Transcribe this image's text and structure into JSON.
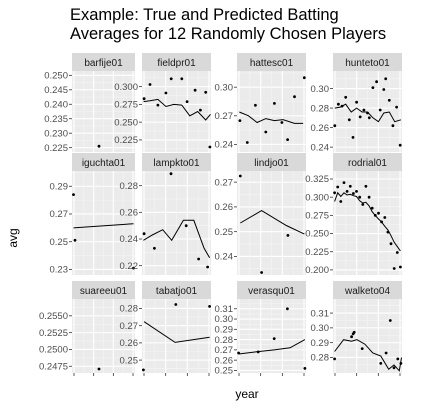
{
  "chart_data": {
    "type": "scatter",
    "title": "Example: True and Predicted Batting\nAverages for 12 Randomly Chosen Players",
    "xlabel": "year",
    "ylabel": "avg",
    "layout": "facet-grid 4 columns x 3 rows, free y scales",
    "grid": true,
    "x_ticks_labeled": false,
    "series_legend": "points = true avg, line = predicted avg",
    "panels": [
      {
        "name": "barfije01",
        "yticks": [
          "0.250",
          "0.245",
          "0.240",
          "0.235",
          "0.230",
          "0.225"
        ],
        "ylim": [
          0.2235,
          0.2515
        ],
        "xlim": [
          0,
          4.2
        ],
        "points": [
          [
            1.8,
            0.2255
          ]
        ],
        "line": []
      },
      {
        "name": "fieldpr01",
        "yticks": [
          "0.300",
          "0.275",
          "0.250",
          "0.225"
        ],
        "ylim": [
          0.208,
          0.322
        ],
        "xlim": [
          0,
          13
        ],
        "points": [
          [
            0.4,
            0.283
          ],
          [
            1.5,
            0.303
          ],
          [
            3.0,
            0.274
          ],
          [
            4.5,
            0.291
          ],
          [
            5.5,
            0.311
          ],
          [
            7.5,
            0.311
          ],
          [
            8.5,
            0.279
          ],
          [
            10.0,
            0.295
          ],
          [
            11.0,
            0.267
          ],
          [
            12.0,
            0.292
          ],
          [
            12.8,
            0.215
          ]
        ],
        "line": [
          [
            0.3,
            0.279
          ],
          [
            1.5,
            0.28
          ],
          [
            3.0,
            0.282
          ],
          [
            4.5,
            0.272
          ],
          [
            6.0,
            0.275
          ],
          [
            7.5,
            0.274
          ],
          [
            9.0,
            0.259
          ],
          [
            10.5,
            0.265
          ],
          [
            12.0,
            0.253
          ],
          [
            12.9,
            0.261
          ]
        ]
      },
      {
        "name": "hattesc01",
        "yticks": [
          "0.30",
          "0.27",
          "0.24"
        ],
        "ylim": [
          0.232,
          0.317
        ],
        "xlim": [
          0,
          12
        ],
        "points": [
          [
            0.5,
            0.265
          ],
          [
            1.8,
            0.242
          ],
          [
            3.2,
            0.281
          ],
          [
            5.0,
            0.253
          ],
          [
            6.5,
            0.283
          ],
          [
            7.8,
            0.263
          ],
          [
            8.8,
            0.245
          ],
          [
            10.0,
            0.29
          ],
          [
            11.7,
            0.31
          ]
        ],
        "line": [
          [
            0.4,
            0.274
          ],
          [
            2.0,
            0.27
          ],
          [
            3.5,
            0.263
          ],
          [
            5.0,
            0.267
          ],
          [
            6.5,
            0.265
          ],
          [
            8.0,
            0.266
          ],
          [
            10.0,
            0.262
          ],
          [
            11.5,
            0.262
          ]
        ]
      },
      {
        "name": "hunteto01",
        "yticks": [
          "0.30",
          "0.28",
          "0.26",
          "0.24"
        ],
        "ylim": [
          0.235,
          0.318
        ],
        "xlim": [
          0,
          19
        ],
        "points": [
          [
            0.5,
            0.262
          ],
          [
            1.5,
            0.284
          ],
          [
            2.5,
            0.282
          ],
          [
            3.5,
            0.291
          ],
          [
            4.5,
            0.268
          ],
          [
            5.5,
            0.25
          ],
          [
            6.5,
            0.286
          ],
          [
            7.5,
            0.271
          ],
          [
            8.5,
            0.278
          ],
          [
            9.5,
            0.275
          ],
          [
            10.0,
            0.27
          ],
          [
            11.0,
            0.301
          ],
          [
            12.0,
            0.307
          ],
          [
            13.0,
            0.278
          ],
          [
            14.0,
            0.299
          ],
          [
            14.5,
            0.31
          ],
          [
            15.5,
            0.288
          ],
          [
            16.5,
            0.262
          ],
          [
            17.5,
            0.281
          ],
          [
            18.5,
            0.242
          ]
        ],
        "line": [
          [
            0.5,
            0.28
          ],
          [
            2.0,
            0.281
          ],
          [
            3.5,
            0.284
          ],
          [
            5.0,
            0.276
          ],
          [
            6.5,
            0.28
          ],
          [
            8.0,
            0.276
          ],
          [
            9.5,
            0.276
          ],
          [
            11.0,
            0.27
          ],
          [
            12.5,
            0.266
          ],
          [
            14.0,
            0.275
          ],
          [
            15.5,
            0.276
          ],
          [
            17.0,
            0.266
          ],
          [
            18.7,
            0.268
          ]
        ]
      },
      {
        "name": "iguchta01",
        "yticks": [
          "0.29",
          "0.27",
          "0.25",
          "0.23"
        ],
        "ylim": [
          0.226,
          0.301
        ],
        "xlim": [
          0,
          4.2
        ],
        "points": [
          [
            0.1,
            0.284
          ],
          [
            0.2,
            0.251
          ],
          [
            4.1,
            0.231
          ]
        ],
        "line": [
          [
            0.1,
            0.26
          ],
          [
            4.1,
            0.263
          ]
        ]
      },
      {
        "name": "lampkto01",
        "yticks": [
          "0.28",
          "0.26",
          "0.24",
          "0.22"
        ],
        "ylim": [
          0.213,
          0.291
        ],
        "xlim": [
          0,
          10
        ],
        "points": [
          [
            0.3,
            0.244
          ],
          [
            1.8,
            0.233
          ],
          [
            4.2,
            0.289
          ],
          [
            6.4,
            0.25
          ],
          [
            8.2,
            0.225
          ],
          [
            9.5,
            0.219
          ]
        ],
        "line": [
          [
            0.2,
            0.239
          ],
          [
            1.5,
            0.243
          ],
          [
            3.0,
            0.247
          ],
          [
            4.3,
            0.239
          ],
          [
            6.0,
            0.254
          ],
          [
            7.5,
            0.254
          ],
          [
            9.0,
            0.233
          ],
          [
            9.8,
            0.226
          ]
        ]
      },
      {
        "name": "lindjo01",
        "yticks": [
          "0.27",
          "0.26",
          "0.25",
          "0.24"
        ],
        "ylim": [
          0.2325,
          0.2745
        ],
        "xlim": [
          0,
          4.2
        ],
        "points": [
          [
            0.2,
            0.2725
          ],
          [
            1.5,
            0.2335
          ],
          [
            3.1,
            0.2485
          ]
        ],
        "line": [
          [
            0.2,
            0.2535
          ],
          [
            1.5,
            0.2585
          ],
          [
            3.0,
            0.2525
          ],
          [
            4.1,
            0.249
          ]
        ]
      },
      {
        "name": "rodrial01",
        "yticks": [
          "0.325",
          "0.300",
          "0.275",
          "0.250",
          "0.225",
          "0.200"
        ],
        "ylim": [
          0.193,
          0.336
        ],
        "xlim": [
          0,
          22
        ],
        "points": [
          [
            0.5,
            0.306
          ],
          [
            1.5,
            0.314
          ],
          [
            2.5,
            0.294
          ],
          [
            3.5,
            0.32
          ],
          [
            4.5,
            0.308
          ],
          [
            5.5,
            0.315
          ],
          [
            6.5,
            0.305
          ],
          [
            7.5,
            0.308
          ],
          [
            8.5,
            0.3
          ],
          [
            9.5,
            0.29
          ],
          [
            10.5,
            0.315
          ],
          [
            11.5,
            0.3
          ],
          [
            12.5,
            0.285
          ],
          [
            13.5,
            0.275
          ],
          [
            14.5,
            0.278
          ],
          [
            15.5,
            0.266
          ],
          [
            16.5,
            0.272
          ],
          [
            17.5,
            0.252
          ],
          [
            18.5,
            0.236
          ],
          [
            19.5,
            0.202
          ],
          [
            20.5,
            0.224
          ],
          [
            21.5,
            0.204
          ]
        ],
        "line": [
          [
            0.5,
            0.294
          ],
          [
            1.5,
            0.306
          ],
          [
            2.5,
            0.301
          ],
          [
            3.5,
            0.306
          ],
          [
            4.5,
            0.303
          ],
          [
            5.5,
            0.304
          ],
          [
            6.5,
            0.302
          ],
          [
            7.5,
            0.301
          ],
          [
            8.5,
            0.295
          ],
          [
            9.5,
            0.292
          ],
          [
            10.5,
            0.293
          ],
          [
            11.5,
            0.288
          ],
          [
            12.5,
            0.28
          ],
          [
            13.5,
            0.275
          ],
          [
            14.5,
            0.27
          ],
          [
            15.5,
            0.266
          ],
          [
            16.5,
            0.26
          ],
          [
            17.5,
            0.255
          ],
          [
            18.5,
            0.247
          ],
          [
            19.5,
            0.238
          ],
          [
            20.5,
            0.232
          ],
          [
            21.5,
            0.226
          ]
        ]
      },
      {
        "name": "suareeu01",
        "yticks": [
          "0.2550",
          "0.2525",
          "0.2500",
          "0.2475"
        ],
        "ylim": [
          0.2465,
          0.2575
        ],
        "xlim": [
          0,
          4.2
        ],
        "points": [
          [
            1.8,
            0.2471
          ]
        ],
        "line": []
      },
      {
        "name": "tabatjo01",
        "yticks": [
          "0.28",
          "0.27",
          "0.26",
          "0.25"
        ],
        "ylim": [
          0.2425,
          0.2855
        ],
        "xlim": [
          0,
          10
        ],
        "points": [
          [
            0.2,
            0.2443
          ],
          [
            4.9,
            0.2823
          ],
          [
            9.8,
            0.2812
          ]
        ],
        "line": [
          [
            0.3,
            0.2723
          ],
          [
            4.8,
            0.2603
          ],
          [
            9.8,
            0.2633
          ]
        ]
      },
      {
        "name": "verasqu01",
        "yticks": [
          "0.31",
          "0.30",
          "0.29",
          "0.28",
          "0.27",
          "0.26",
          "0.25"
        ],
        "ylim": [
          0.2475,
          0.3195
        ],
        "xlim": [
          0,
          13
        ],
        "points": [
          [
            0.3,
            0.267
          ],
          [
            4.0,
            0.268
          ],
          [
            7.0,
            0.281
          ],
          [
            9.5,
            0.31
          ],
          [
            12.8,
            0.252
          ]
        ],
        "line": [
          [
            0.3,
            0.266
          ],
          [
            3.5,
            0.268
          ],
          [
            7.0,
            0.27
          ],
          [
            10.0,
            0.272
          ],
          [
            12.8,
            0.28
          ]
        ]
      },
      {
        "name": "walketo04",
        "yticks": [
          "0.31",
          "0.30",
          "0.29",
          "0.28"
        ],
        "ylim": [
          0.2695,
          0.3195
        ],
        "xlim": [
          0,
          13
        ],
        "points": [
          [
            0.3,
            0.279
          ],
          [
            3.5,
            0.294
          ],
          [
            3.8,
            0.296
          ],
          [
            4.0,
            0.297
          ],
          [
            5.5,
            0.286
          ],
          [
            9.0,
            0.276
          ],
          [
            10.0,
            0.283
          ],
          [
            10.8,
            0.305
          ],
          [
            11.5,
            0.273
          ],
          [
            12.2,
            0.279
          ],
          [
            12.8,
            0.276
          ]
        ],
        "line": [
          [
            0.3,
            0.284
          ],
          [
            2.0,
            0.292
          ],
          [
            3.5,
            0.291
          ],
          [
            4.5,
            0.292
          ],
          [
            6.0,
            0.289
          ],
          [
            7.5,
            0.283
          ],
          [
            9.0,
            0.281
          ],
          [
            10.5,
            0.272
          ],
          [
            11.5,
            0.275
          ],
          [
            12.5,
            0.271
          ],
          [
            12.9,
            0.28
          ]
        ]
      }
    ]
  }
}
